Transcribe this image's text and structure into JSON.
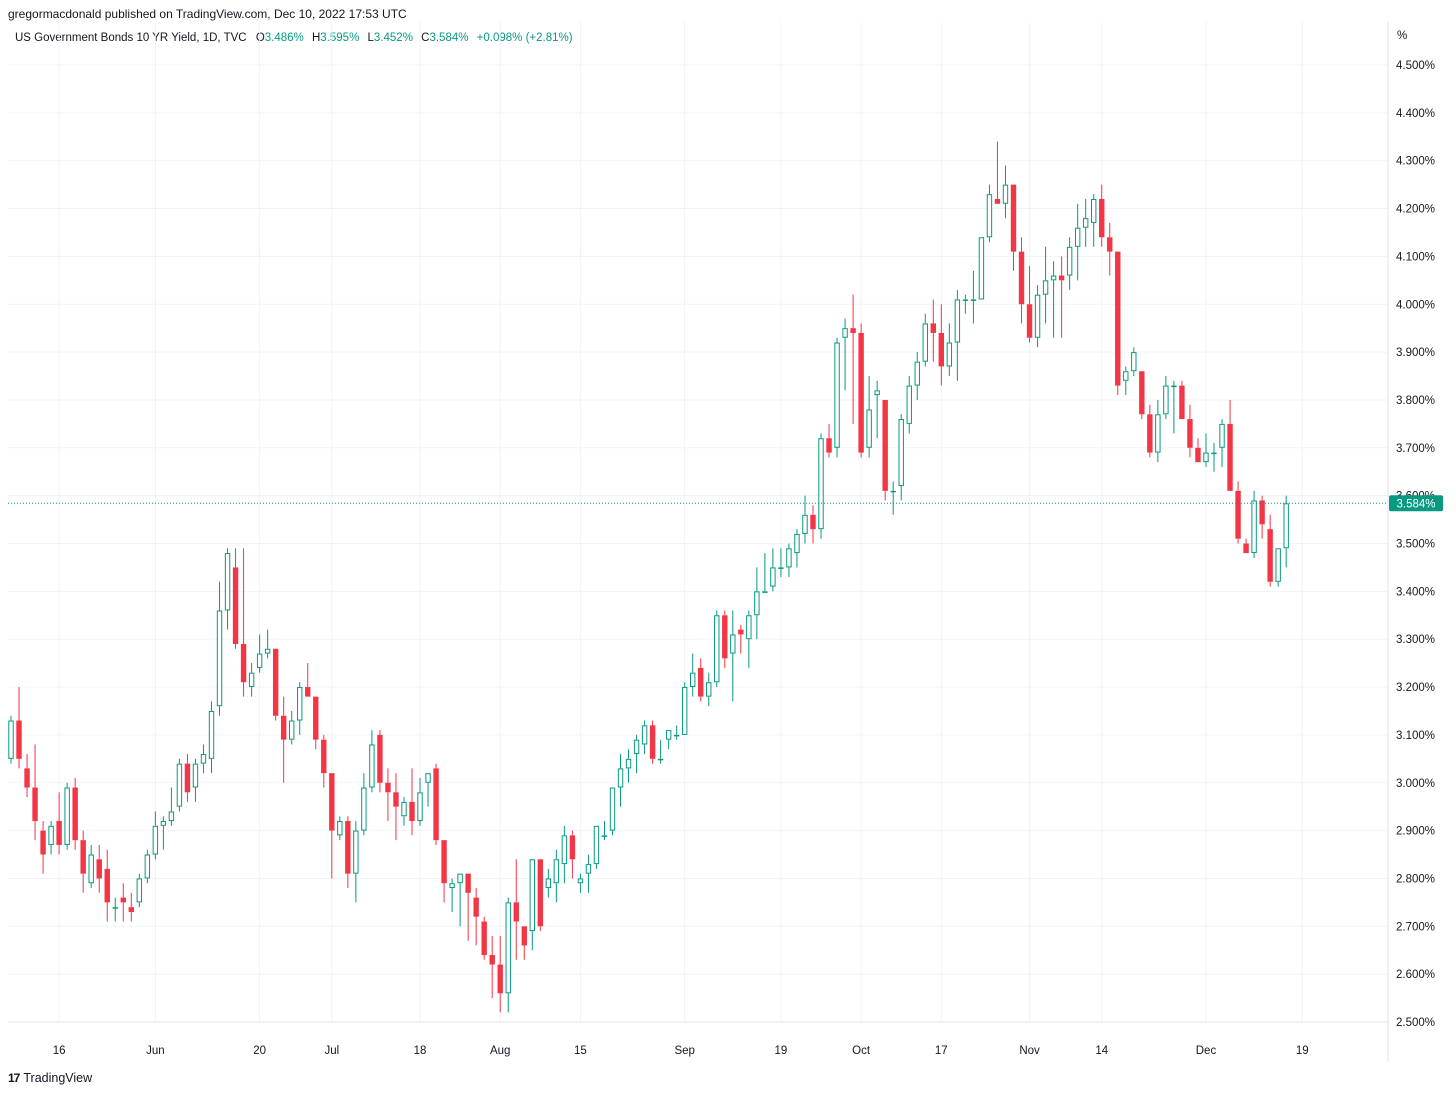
{
  "header": {
    "published": "gregormacdonald published on TradingView.com, Dec 10, 2022 17:53 UTC"
  },
  "legend": {
    "symbol": "US Government Bonds 10 YR Yield, 1D, TVC",
    "o_label": "O",
    "o_value": "3.486%",
    "h_label": "H",
    "h_value": "3.595%",
    "l_label": "L",
    "l_value": "3.452%",
    "c_label": "C",
    "c_value": "3.584%",
    "change": "+0.098% (+2.81%)"
  },
  "axis_unit": "%",
  "footer": {
    "logo": "17",
    "brand": "TradingView"
  },
  "colors": {
    "up": "#089981",
    "down": "#f23645",
    "grid": "#f0f3fa",
    "text": "#131722"
  },
  "chart_data": {
    "type": "candlestick",
    "title": "US Government Bonds 10 YR Yield, 1D, TVC",
    "ylabel": "%",
    "ylim": [
      2.45,
      4.55
    ],
    "yticks": [
      "2.500%",
      "2.600%",
      "2.700%",
      "2.800%",
      "2.900%",
      "3.000%",
      "3.100%",
      "3.200%",
      "3.300%",
      "3.400%",
      "3.500%",
      "3.600%",
      "3.700%",
      "3.800%",
      "3.900%",
      "4.000%",
      "4.100%",
      "4.200%",
      "4.300%",
      "4.400%",
      "4.500%"
    ],
    "yvalues": [
      2.5,
      2.6,
      2.7,
      2.8,
      2.9,
      3.0,
      3.1,
      3.2,
      3.3,
      3.4,
      3.5,
      3.6,
      3.7,
      3.8,
      3.9,
      4.0,
      4.1,
      4.2,
      4.3,
      4.4,
      4.5
    ],
    "xticks": [
      {
        "label": "16",
        "i": 6
      },
      {
        "label": "Jun",
        "i": 18
      },
      {
        "label": "20",
        "i": 31
      },
      {
        "label": "Jul",
        "i": 40
      },
      {
        "label": "18",
        "i": 51
      },
      {
        "label": "Aug",
        "i": 61
      },
      {
        "label": "15",
        "i": 71
      },
      {
        "label": "Sep",
        "i": 84
      },
      {
        "label": "19",
        "i": 96
      },
      {
        "label": "Oct",
        "i": 106
      },
      {
        "label": "17",
        "i": 116
      },
      {
        "label": "Nov",
        "i": 127
      },
      {
        "label": "14",
        "i": 136
      },
      {
        "label": "Dec",
        "i": 149
      },
      {
        "label": "19",
        "i": 161
      }
    ],
    "last_price": 3.584,
    "last_price_label": "3.584%",
    "candles": [
      [
        3.05,
        3.14,
        3.04,
        3.13
      ],
      [
        3.13,
        3.2,
        3.03,
        3.05
      ],
      [
        3.03,
        3.06,
        2.97,
        2.99
      ],
      [
        2.99,
        3.08,
        2.88,
        2.92
      ],
      [
        2.9,
        2.92,
        2.81,
        2.85
      ],
      [
        2.87,
        2.92,
        2.85,
        2.91
      ],
      [
        2.92,
        2.98,
        2.85,
        2.87
      ],
      [
        2.87,
        3.0,
        2.86,
        2.99
      ],
      [
        2.99,
        3.01,
        2.86,
        2.88
      ],
      [
        2.88,
        2.9,
        2.77,
        2.81
      ],
      [
        2.79,
        2.87,
        2.78,
        2.85
      ],
      [
        2.84,
        2.87,
        2.77,
        2.8
      ],
      [
        2.82,
        2.86,
        2.71,
        2.75
      ],
      [
        2.74,
        2.76,
        2.71,
        2.74
      ],
      [
        2.76,
        2.79,
        2.71,
        2.75
      ],
      [
        2.74,
        2.77,
        2.71,
        2.73
      ],
      [
        2.75,
        2.81,
        2.74,
        2.8
      ],
      [
        2.8,
        2.86,
        2.79,
        2.85
      ],
      [
        2.85,
        2.94,
        2.84,
        2.91
      ],
      [
        2.91,
        2.93,
        2.86,
        2.92
      ],
      [
        2.92,
        2.99,
        2.91,
        2.94
      ],
      [
        2.95,
        3.05,
        2.94,
        3.04
      ],
      [
        3.04,
        3.06,
        2.96,
        2.98
      ],
      [
        2.99,
        3.05,
        2.96,
        3.04
      ],
      [
        3.04,
        3.08,
        3.02,
        3.06
      ],
      [
        3.05,
        3.17,
        3.02,
        3.15
      ],
      [
        3.16,
        3.42,
        3.14,
        3.36
      ],
      [
        3.36,
        3.49,
        3.32,
        3.48
      ],
      [
        3.45,
        3.49,
        3.28,
        3.29
      ],
      [
        3.29,
        3.49,
        3.18,
        3.21
      ],
      [
        3.2,
        3.25,
        3.18,
        3.23
      ],
      [
        3.24,
        3.31,
        3.23,
        3.27
      ],
      [
        3.27,
        3.32,
        3.26,
        3.28
      ],
      [
        3.28,
        3.28,
        3.13,
        3.14
      ],
      [
        3.14,
        3.18,
        3.0,
        3.09
      ],
      [
        3.09,
        3.15,
        3.08,
        3.13
      ],
      [
        3.13,
        3.21,
        3.1,
        3.2
      ],
      [
        3.2,
        3.25,
        3.18,
        3.18
      ],
      [
        3.18,
        3.18,
        3.07,
        3.09
      ],
      [
        3.09,
        3.1,
        2.99,
        3.02
      ],
      [
        3.02,
        3.02,
        2.8,
        2.9
      ],
      [
        2.89,
        2.93,
        2.88,
        2.92
      ],
      [
        2.92,
        2.93,
        2.78,
        2.81
      ],
      [
        2.81,
        2.92,
        2.75,
        2.9
      ],
      [
        2.9,
        3.02,
        2.89,
        2.99
      ],
      [
        2.99,
        3.11,
        2.98,
        3.08
      ],
      [
        3.1,
        3.11,
        2.98,
        3.0
      ],
      [
        3.0,
        3.03,
        2.92,
        2.98
      ],
      [
        2.98,
        3.02,
        2.88,
        2.95
      ],
      [
        2.93,
        2.97,
        2.91,
        2.96
      ],
      [
        2.96,
        3.03,
        2.89,
        2.92
      ],
      [
        2.92,
        3.01,
        2.91,
        2.98
      ],
      [
        3.0,
        3.02,
        2.95,
        3.02
      ],
      [
        3.03,
        3.04,
        2.87,
        2.88
      ],
      [
        2.88,
        2.88,
        2.75,
        2.79
      ],
      [
        2.78,
        2.8,
        2.73,
        2.79
      ],
      [
        2.79,
        2.81,
        2.7,
        2.81
      ],
      [
        2.81,
        2.81,
        2.67,
        2.77
      ],
      [
        2.76,
        2.78,
        2.66,
        2.72
      ],
      [
        2.71,
        2.72,
        2.63,
        2.64
      ],
      [
        2.64,
        2.68,
        2.55,
        2.62
      ],
      [
        2.62,
        2.68,
        2.52,
        2.56
      ],
      [
        2.56,
        2.76,
        2.52,
        2.75
      ],
      [
        2.75,
        2.84,
        2.63,
        2.71
      ],
      [
        2.7,
        2.7,
        2.63,
        2.66
      ],
      [
        2.69,
        2.83,
        2.65,
        2.84
      ],
      [
        2.84,
        2.84,
        2.69,
        2.7
      ],
      [
        2.78,
        2.82,
        2.76,
        2.8
      ],
      [
        2.79,
        2.86,
        2.75,
        2.84
      ],
      [
        2.83,
        2.91,
        2.79,
        2.89
      ],
      [
        2.89,
        2.9,
        2.8,
        2.84
      ],
      [
        2.79,
        2.81,
        2.77,
        2.8
      ],
      [
        2.81,
        2.85,
        2.77,
        2.83
      ],
      [
        2.83,
        2.91,
        2.82,
        2.91
      ],
      [
        2.89,
        2.92,
        2.88,
        2.89
      ],
      [
        2.9,
        2.99,
        2.89,
        2.99
      ],
      [
        2.99,
        3.06,
        2.95,
        3.03
      ],
      [
        3.03,
        3.07,
        3.0,
        3.05
      ],
      [
        3.06,
        3.1,
        3.02,
        3.09
      ],
      [
        3.08,
        3.13,
        3.06,
        3.12
      ],
      [
        3.12,
        3.13,
        3.04,
        3.05
      ],
      [
        3.05,
        3.09,
        3.04,
        3.05
      ],
      [
        3.09,
        3.11,
        3.07,
        3.11
      ],
      [
        3.1,
        3.12,
        3.09,
        3.1
      ],
      [
        3.1,
        3.21,
        3.1,
        3.2
      ],
      [
        3.2,
        3.27,
        3.18,
        3.23
      ],
      [
        3.24,
        3.26,
        3.17,
        3.18
      ],
      [
        3.18,
        3.23,
        3.16,
        3.21
      ],
      [
        3.21,
        3.36,
        3.2,
        3.35
      ],
      [
        3.35,
        3.36,
        3.24,
        3.26
      ],
      [
        3.27,
        3.36,
        3.17,
        3.31
      ],
      [
        3.32,
        3.33,
        3.27,
        3.31
      ],
      [
        3.3,
        3.36,
        3.24,
        3.35
      ],
      [
        3.35,
        3.45,
        3.3,
        3.4
      ],
      [
        3.4,
        3.48,
        3.4,
        3.4
      ],
      [
        3.41,
        3.49,
        3.4,
        3.45
      ],
      [
        3.45,
        3.49,
        3.43,
        3.45
      ],
      [
        3.45,
        3.5,
        3.43,
        3.49
      ],
      [
        3.48,
        3.53,
        3.45,
        3.52
      ],
      [
        3.52,
        3.6,
        3.5,
        3.56
      ],
      [
        3.56,
        3.58,
        3.5,
        3.53
      ],
      [
        3.53,
        3.73,
        3.51,
        3.72
      ],
      [
        3.72,
        3.75,
        3.68,
        3.69
      ],
      [
        3.7,
        3.93,
        3.68,
        3.92
      ],
      [
        3.93,
        3.97,
        3.82,
        3.95
      ],
      [
        3.95,
        4.02,
        3.75,
        3.94
      ],
      [
        3.94,
        3.96,
        3.68,
        3.69
      ],
      [
        3.7,
        3.85,
        3.68,
        3.78
      ],
      [
        3.81,
        3.84,
        3.72,
        3.82
      ],
      [
        3.8,
        3.8,
        3.59,
        3.61
      ],
      [
        3.61,
        3.63,
        3.56,
        3.61
      ],
      [
        3.62,
        3.77,
        3.59,
        3.76
      ],
      [
        3.75,
        3.85,
        3.73,
        3.83
      ],
      [
        3.83,
        3.9,
        3.8,
        3.88
      ],
      [
        3.88,
        3.98,
        3.87,
        3.96
      ],
      [
        3.96,
        4.01,
        3.88,
        3.94
      ],
      [
        3.94,
        4.0,
        3.83,
        3.87
      ],
      [
        3.87,
        3.96,
        3.85,
        3.92
      ],
      [
        3.92,
        4.03,
        3.84,
        4.01
      ],
      [
        4.01,
        4.02,
        3.98,
        4.01
      ],
      [
        4.01,
        4.07,
        3.96,
        4.01
      ],
      [
        4.01,
        4.14,
        4.01,
        4.14
      ],
      [
        4.14,
        4.25,
        4.13,
        4.23
      ],
      [
        4.22,
        4.34,
        4.22,
        4.21
      ],
      [
        4.21,
        4.29,
        4.18,
        4.25
      ],
      [
        4.25,
        4.25,
        4.07,
        4.11
      ],
      [
        4.11,
        4.14,
        3.96,
        4.0
      ],
      [
        4.0,
        4.08,
        3.92,
        3.93
      ],
      [
        3.93,
        4.04,
        3.91,
        4.02
      ],
      [
        4.02,
        4.12,
        3.96,
        4.05
      ],
      [
        4.05,
        4.09,
        3.93,
        4.06
      ],
      [
        4.06,
        4.1,
        3.93,
        4.05
      ],
      [
        4.06,
        4.14,
        4.03,
        4.12
      ],
      [
        4.12,
        4.21,
        4.05,
        4.16
      ],
      [
        4.16,
        4.22,
        4.12,
        4.18
      ],
      [
        4.17,
        4.23,
        4.12,
        4.22
      ],
      [
        4.22,
        4.25,
        4.12,
        4.14
      ],
      [
        4.14,
        4.17,
        4.06,
        4.11
      ],
      [
        4.11,
        4.11,
        3.81,
        3.83
      ],
      [
        3.84,
        3.87,
        3.81,
        3.86
      ],
      [
        3.86,
        3.91,
        3.85,
        3.9
      ],
      [
        3.86,
        3.86,
        3.76,
        3.77
      ],
      [
        3.77,
        3.79,
        3.68,
        3.69
      ],
      [
        3.69,
        3.8,
        3.67,
        3.77
      ],
      [
        3.77,
        3.85,
        3.76,
        3.83
      ],
      [
        3.83,
        3.84,
        3.73,
        3.83
      ],
      [
        3.83,
        3.84,
        3.76,
        3.76
      ],
      [
        3.76,
        3.79,
        3.68,
        3.7
      ],
      [
        3.7,
        3.72,
        3.67,
        3.67
      ],
      [
        3.67,
        3.73,
        3.66,
        3.69
      ],
      [
        3.69,
        3.71,
        3.65,
        3.69
      ],
      [
        3.7,
        3.76,
        3.66,
        3.75
      ],
      [
        3.75,
        3.8,
        3.61,
        3.61
      ],
      [
        3.61,
        3.63,
        3.5,
        3.51
      ],
      [
        3.5,
        3.51,
        3.48,
        3.48
      ],
      [
        3.48,
        3.61,
        3.47,
        3.59
      ],
      [
        3.59,
        3.6,
        3.51,
        3.54
      ],
      [
        3.53,
        3.56,
        3.41,
        3.42
      ],
      [
        3.42,
        3.49,
        3.41,
        3.49
      ],
      [
        3.49,
        3.6,
        3.45,
        3.584
      ]
    ]
  }
}
